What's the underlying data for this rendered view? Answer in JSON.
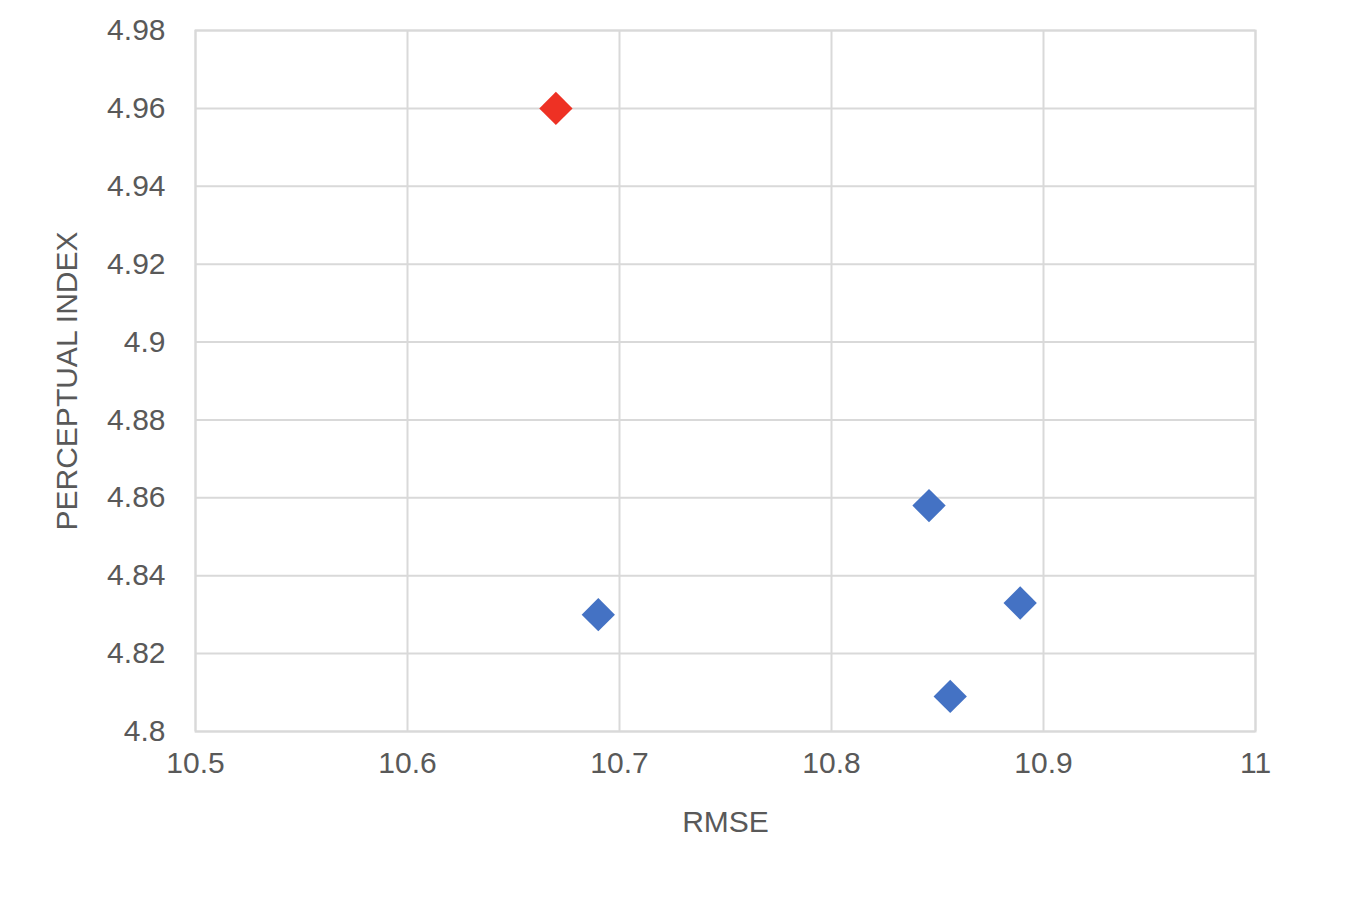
{
  "chart_data": {
    "type": "scatter",
    "x_label": "RMSE",
    "y_label": "PERCEPTUAL INDEX",
    "x": [
      10.67,
      10.69,
      10.846,
      10.856,
      10.889
    ],
    "values": [
      4.96,
      4.83,
      4.858,
      4.809,
      4.833
    ],
    "colors": [
      "#ee3124",
      "#4472c4",
      "#4472c4",
      "#4472c4",
      "#4472c4"
    ],
    "marker": "diamond",
    "xlim": [
      10.5,
      11
    ],
    "xticks": [
      10.5,
      10.6,
      10.7,
      10.8,
      10.9,
      11
    ],
    "ylim": [
      4.8,
      4.98
    ],
    "yticks": [
      4.8,
      4.82,
      4.84,
      4.86,
      4.88,
      4.9,
      4.92,
      4.94,
      4.96,
      4.98
    ],
    "grid": true
  }
}
